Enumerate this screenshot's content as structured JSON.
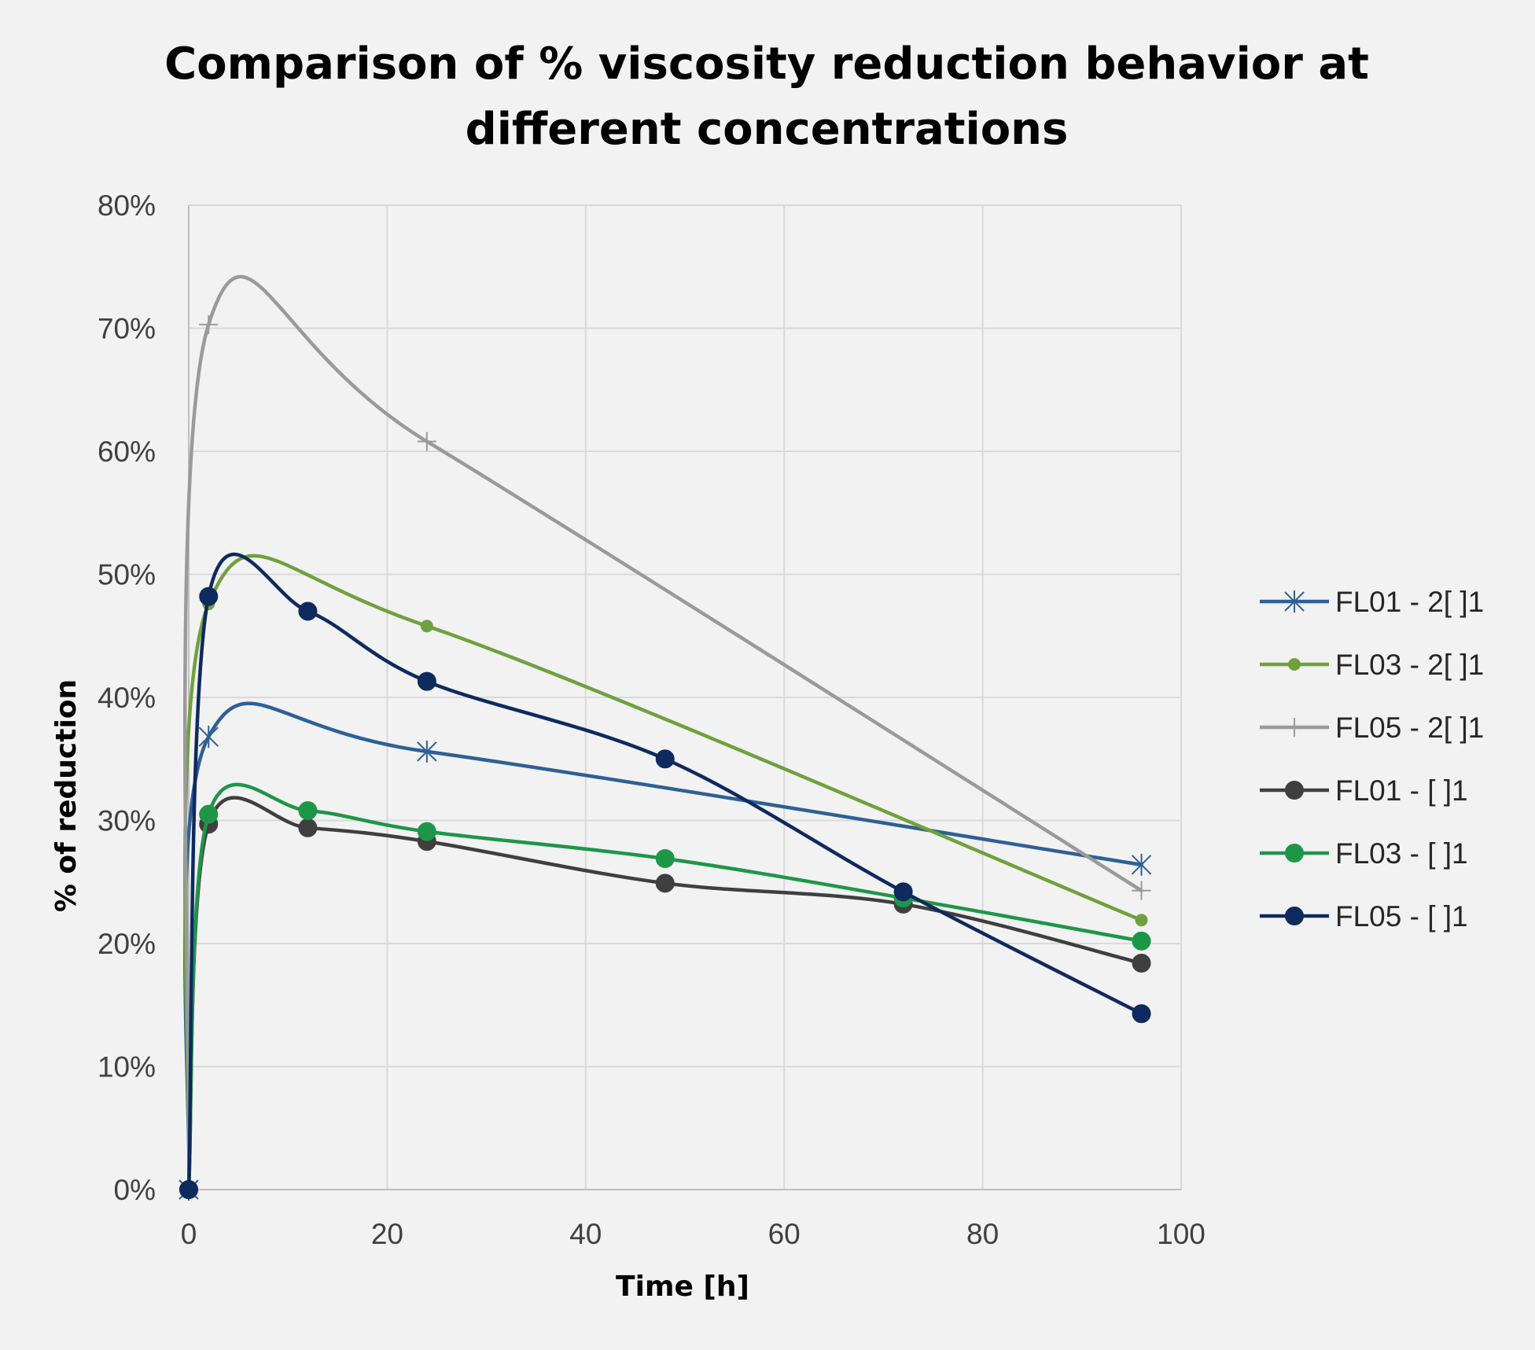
{
  "chart_data": {
    "type": "line",
    "title": [
      "Comparison of % viscosity reduction behavior at",
      "different concentrations"
    ],
    "xlabel": "Time [h]",
    "ylabel": "% of reduction",
    "xlim": [
      0,
      100
    ],
    "ylim": [
      0,
      0.8
    ],
    "x_ticks": [
      0,
      20,
      40,
      60,
      80,
      100
    ],
    "x_tick_labels": [
      "0",
      "20",
      "40",
      "60",
      "80",
      "100"
    ],
    "y_ticks": [
      0,
      0.1,
      0.2,
      0.3,
      0.4,
      0.5,
      0.6,
      0.7,
      0.8
    ],
    "y_tick_labels": [
      "0%",
      "10%",
      "20%",
      "30%",
      "40%",
      "50%",
      "60%",
      "70%",
      "80%"
    ],
    "grid": true,
    "smoothed": true,
    "legend_position": "right",
    "series": [
      {
        "name": "FL01 - 2[ ]1",
        "color": "#2e6095",
        "marker": "asterisk",
        "x": [
          0,
          2,
          24,
          96
        ],
        "y": [
          0.0,
          0.368,
          0.356,
          0.264
        ]
      },
      {
        "name": "FL03 -  2[ ]1",
        "color": "#6fa13f",
        "marker": "small-circle",
        "x": [
          0,
          2,
          24,
          96
        ],
        "y": [
          0.0,
          0.476,
          0.458,
          0.219
        ]
      },
      {
        "name": "FL05 -  2[ ]1",
        "color": "#9a9a9a",
        "marker": "plus",
        "x": [
          0,
          2,
          24,
          96
        ],
        "y": [
          0.0,
          0.703,
          0.608,
          0.243
        ]
      },
      {
        "name": "FL01 - [ ]1",
        "color": "#3f3f3f",
        "marker": "circle",
        "x": [
          0,
          2,
          12,
          24,
          48,
          72,
          96
        ],
        "y": [
          0.0,
          0.297,
          0.294,
          0.283,
          0.249,
          0.232,
          0.184
        ]
      },
      {
        "name": "FL03 -  [ ]1",
        "color": "#1e9648",
        "marker": "circle",
        "x": [
          0,
          2,
          12,
          24,
          48,
          72,
          96
        ],
        "y": [
          0.0,
          0.305,
          0.308,
          0.291,
          0.269,
          0.237,
          0.202
        ]
      },
      {
        "name": "FL05 -  [ ]1",
        "color": "#0e2a5e",
        "marker": "circle",
        "x": [
          0,
          2,
          12,
          24,
          48,
          72,
          96
        ],
        "y": [
          0.0,
          0.482,
          0.47,
          0.413,
          0.35,
          0.242,
          0.143
        ]
      }
    ]
  }
}
